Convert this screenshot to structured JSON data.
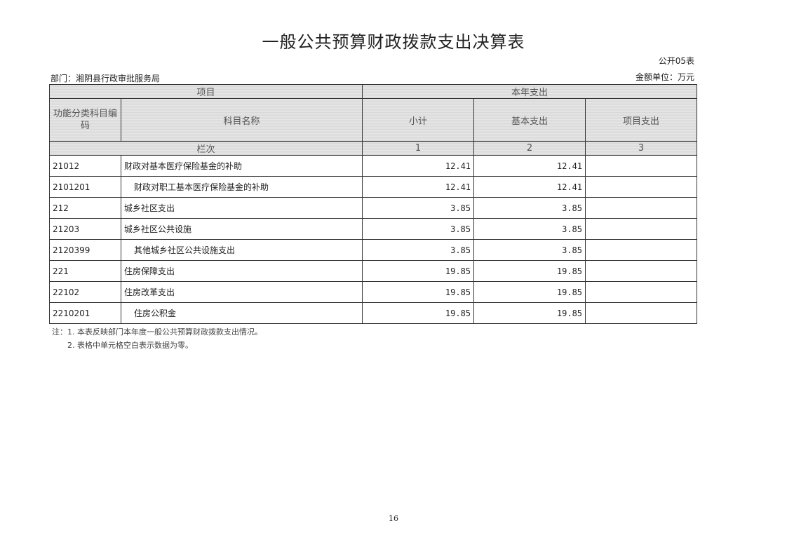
{
  "title": "一般公共预算财政拨款支出决算表",
  "form_no": "公开05表",
  "department": "部门：湘阴县行政审批服务局",
  "unit": "金额单位：万元",
  "header": {
    "item": "项目",
    "current_year": "本年支出",
    "code": "功能分类科目编码",
    "name": "科目名称",
    "subtotal": "小计",
    "basic": "基本支出",
    "project": "项目支出",
    "column_no": "栏次",
    "col1": "1",
    "col2": "2",
    "col3": "3"
  },
  "rows": [
    {
      "code": "21012",
      "name": "财政对基本医疗保险基金的补助",
      "subtotal": "12.41",
      "basic": "12.41",
      "project": "",
      "indent": false
    },
    {
      "code": "2101201",
      "name": "财政对职工基本医疗保险基金的补助",
      "subtotal": "12.41",
      "basic": "12.41",
      "project": "",
      "indent": true
    },
    {
      "code": "212",
      "name": "城乡社区支出",
      "subtotal": "3.85",
      "basic": "3.85",
      "project": "",
      "indent": false
    },
    {
      "code": "21203",
      "name": "城乡社区公共设施",
      "subtotal": "3.85",
      "basic": "3.85",
      "project": "",
      "indent": false
    },
    {
      "code": "2120399",
      "name": "其他城乡社区公共设施支出",
      "subtotal": "3.85",
      "basic": "3.85",
      "project": "",
      "indent": true
    },
    {
      "code": "221",
      "name": "住房保障支出",
      "subtotal": "19.85",
      "basic": "19.85",
      "project": "",
      "indent": false
    },
    {
      "code": "22102",
      "name": "住房改革支出",
      "subtotal": "19.85",
      "basic": "19.85",
      "project": "",
      "indent": false
    },
    {
      "code": "2210201",
      "name": "住房公积金",
      "subtotal": "19.85",
      "basic": "19.85",
      "project": "",
      "indent": true
    }
  ],
  "notes": [
    "注：1. 本表反映部门本年度一般公共预算财政拨款支出情况。",
    "2. 表格中单元格空白表示数据为零。"
  ],
  "page_number": "16"
}
